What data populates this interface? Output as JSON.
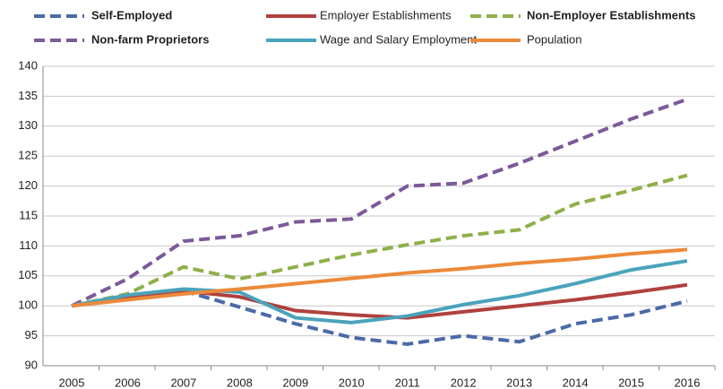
{
  "chart_data": {
    "type": "line",
    "categories": [
      "2005",
      "2006",
      "2007",
      "2008",
      "2009",
      "2010",
      "2011",
      "2012",
      "2013",
      "2014",
      "2015",
      "2016"
    ],
    "series": [
      {
        "name": "Self-Employed",
        "color": "#4a6aa8",
        "dashed": true,
        "values": [
          100,
          101.5,
          102.5,
          99.8,
          97,
          94.7,
          93.6,
          95,
          94,
          97,
          98.5,
          100.8
        ]
      },
      {
        "name": "Employer Establishments",
        "color": "#b0413e",
        "dashed": false,
        "values": [
          100,
          101.5,
          102.5,
          101.5,
          99.2,
          98.5,
          98,
          99,
          100,
          101,
          102.2,
          103.5
        ]
      },
      {
        "name": "Non-Employer Establishments",
        "color": "#8fb04a",
        "dashed": true,
        "values": [
          100,
          102,
          106.5,
          104.5,
          106.5,
          108.5,
          110.2,
          111.7,
          112.7,
          117,
          119.3,
          121.8
        ]
      },
      {
        "name": "Non-farm Proprietors",
        "color": "#7b5a9a",
        "dashed": true,
        "values": [
          100,
          104.5,
          110.8,
          111.7,
          114,
          114.5,
          120,
          120.5,
          123.8,
          127.5,
          131.2,
          134.5
        ]
      },
      {
        "name": "Wage and Salary Employment",
        "color": "#4aa3bb",
        "dashed": false,
        "values": [
          100,
          101.8,
          102.8,
          102.3,
          98,
          97.2,
          98.3,
          100.2,
          101.7,
          103.7,
          106,
          107.5
        ]
      },
      {
        "name": "Population",
        "color": "#ec8a3b",
        "dashed": false,
        "values": [
          100,
          101,
          102,
          102.8,
          103.7,
          104.6,
          105.5,
          106.2,
          107.1,
          107.8,
          108.7,
          109.4
        ]
      }
    ],
    "ylim": [
      90,
      140
    ],
    "yticks": [
      90,
      95,
      100,
      105,
      110,
      115,
      120,
      125,
      130,
      135,
      140
    ],
    "grid": true,
    "legend": "top"
  }
}
